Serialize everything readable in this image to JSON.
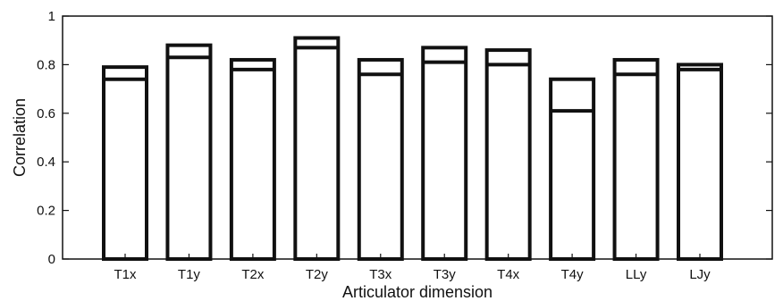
{
  "chart_data": {
    "type": "bar",
    "title": "",
    "xlabel": "Articulator dimension",
    "ylabel": "Correlation",
    "ylim": [
      0,
      1
    ],
    "yticks": [
      0,
      0.2,
      0.4,
      0.6,
      0.8,
      1
    ],
    "ytick_labels": [
      "0",
      "0.2",
      "0.4",
      "0.6",
      "0.8",
      "1"
    ],
    "grid": false,
    "legend": "none",
    "categories": [
      "T1x",
      "T1y",
      "T2x",
      "T2y",
      "T3x",
      "T3y",
      "T4x",
      "T4y",
      "LLy",
      "LJy"
    ],
    "series": [
      {
        "values": [
          0.79,
          0.88,
          0.82,
          0.91,
          0.82,
          0.87,
          0.86,
          0.74,
          0.82,
          0.8
        ]
      },
      {
        "values": [
          0.74,
          0.83,
          0.78,
          0.87,
          0.76,
          0.81,
          0.8,
          0.61,
          0.76,
          0.78
        ]
      }
    ],
    "colors": {
      "bar_stroke": "#111111",
      "background": "#ffffff"
    }
  }
}
